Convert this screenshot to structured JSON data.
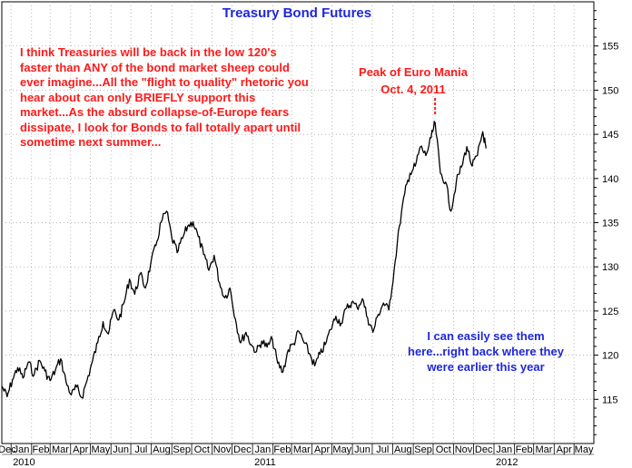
{
  "chart_data": {
    "type": "line",
    "title": "Treasury Bond Futures",
    "ylim": [
      110,
      160
    ],
    "yticks": [
      115,
      120,
      125,
      130,
      135,
      140,
      145,
      150,
      155
    ],
    "grid": "dotted",
    "x_month_labels": [
      "Dec",
      "Jan",
      "Feb",
      "Mar",
      "Apr",
      "May",
      "Jun",
      "Jul",
      "Aug",
      "Sep",
      "Oct",
      "Nov",
      "Dec",
      "Jan",
      "Feb",
      "Mar",
      "Apr",
      "May",
      "Jun",
      "Jul",
      "Aug",
      "Sep",
      "Oct",
      "Nov",
      "Dec",
      "Jan",
      "Feb",
      "Mar",
      "Apr",
      "May"
    ],
    "x_month_dates": [
      "2009-12-01",
      "2010-01-01",
      "2010-02-01",
      "2010-03-01",
      "2010-04-01",
      "2010-05-01",
      "2010-06-01",
      "2010-07-01",
      "2010-08-01",
      "2010-09-01",
      "2010-10-01",
      "2010-11-01",
      "2010-12-01",
      "2011-01-01",
      "2011-02-01",
      "2011-03-01",
      "2011-04-01",
      "2011-05-01",
      "2011-06-01",
      "2011-07-01",
      "2011-08-01",
      "2011-09-01",
      "2011-10-01",
      "2011-11-01",
      "2011-12-01",
      "2012-01-01",
      "2012-02-01",
      "2012-03-01",
      "2012-04-01",
      "2012-05-01"
    ],
    "year_labels": [
      {
        "label": "2010",
        "date": "2010-01-01"
      },
      {
        "label": "2011",
        "date": "2011-01-01"
      },
      {
        "label": "2012",
        "date": "2012-01-01"
      }
    ],
    "xlim": [
      "2009-12-18",
      "2012-05-31"
    ],
    "series": [
      {
        "color": "#000000",
        "points": [
          [
            "2009-12-18",
            116.5
          ],
          [
            "2009-12-26",
            115.3
          ],
          [
            "2010-01-03",
            117.2
          ],
          [
            "2010-01-11",
            118.6
          ],
          [
            "2010-01-19",
            117.4
          ],
          [
            "2010-01-27",
            119.2
          ],
          [
            "2010-02-05",
            117.8
          ],
          [
            "2010-02-13",
            119.4
          ],
          [
            "2010-02-21",
            118.2
          ],
          [
            "2010-03-01",
            117.1
          ],
          [
            "2010-03-09",
            118.3
          ],
          [
            "2010-03-17",
            119.6
          ],
          [
            "2010-03-25",
            117.0
          ],
          [
            "2010-04-02",
            115.5
          ],
          [
            "2010-04-10",
            116.4
          ],
          [
            "2010-04-18",
            115.2
          ],
          [
            "2010-04-26",
            117.2
          ],
          [
            "2010-05-04",
            119.3
          ],
          [
            "2010-05-12",
            121.4
          ],
          [
            "2010-05-20",
            123.8
          ],
          [
            "2010-05-28",
            122.4
          ],
          [
            "2010-06-05",
            125.1
          ],
          [
            "2010-06-13",
            124.0
          ],
          [
            "2010-06-21",
            126.0
          ],
          [
            "2010-06-29",
            128.6
          ],
          [
            "2010-07-07",
            126.9
          ],
          [
            "2010-07-15",
            129.2
          ],
          [
            "2010-07-23",
            127.6
          ],
          [
            "2010-07-31",
            130.3
          ],
          [
            "2010-08-08",
            132.4
          ],
          [
            "2010-08-16",
            135.1
          ],
          [
            "2010-08-24",
            136.3
          ],
          [
            "2010-09-01",
            133.3
          ],
          [
            "2010-09-09",
            131.6
          ],
          [
            "2010-09-17",
            133.2
          ],
          [
            "2010-09-25",
            134.6
          ],
          [
            "2010-10-03",
            135.1
          ],
          [
            "2010-10-11",
            133.4
          ],
          [
            "2010-10-19",
            131.4
          ],
          [
            "2010-10-27",
            129.6
          ],
          [
            "2010-11-04",
            131.3
          ],
          [
            "2010-11-12",
            128.2
          ],
          [
            "2010-11-20",
            126.5
          ],
          [
            "2010-11-28",
            127.6
          ],
          [
            "2010-12-06",
            124.1
          ],
          [
            "2010-12-14",
            121.4
          ],
          [
            "2010-12-22",
            122.6
          ],
          [
            "2010-12-30",
            121.2
          ],
          [
            "2011-01-07",
            120.4
          ],
          [
            "2011-01-15",
            121.6
          ],
          [
            "2011-01-23",
            120.9
          ],
          [
            "2011-01-31",
            121.8
          ],
          [
            "2011-02-08",
            119.1
          ],
          [
            "2011-02-16",
            118.1
          ],
          [
            "2011-02-24",
            120.6
          ],
          [
            "2011-03-04",
            121.3
          ],
          [
            "2011-03-12",
            122.7
          ],
          [
            "2011-03-20",
            121.4
          ],
          [
            "2011-03-28",
            120.2
          ],
          [
            "2011-04-05",
            118.8
          ],
          [
            "2011-04-13",
            120.1
          ],
          [
            "2011-04-21",
            121.2
          ],
          [
            "2011-04-29",
            122.9
          ],
          [
            "2011-05-07",
            124.4
          ],
          [
            "2011-05-15",
            123.6
          ],
          [
            "2011-05-23",
            125.3
          ],
          [
            "2011-05-31",
            126.0
          ],
          [
            "2011-06-08",
            125.4
          ],
          [
            "2011-06-16",
            126.4
          ],
          [
            "2011-06-24",
            124.2
          ],
          [
            "2011-07-02",
            122.6
          ],
          [
            "2011-07-10",
            124.6
          ],
          [
            "2011-07-18",
            125.9
          ],
          [
            "2011-07-26",
            125.1
          ],
          [
            "2011-08-03",
            129.6
          ],
          [
            "2011-08-11",
            134.6
          ],
          [
            "2011-08-19",
            138.3
          ],
          [
            "2011-08-27",
            140.6
          ],
          [
            "2011-09-04",
            141.4
          ],
          [
            "2011-09-12",
            143.6
          ],
          [
            "2011-09-20",
            142.6
          ],
          [
            "2011-09-28",
            144.6
          ],
          [
            "2011-10-04",
            146.3
          ],
          [
            "2011-10-12",
            140.6
          ],
          [
            "2011-10-20",
            139.6
          ],
          [
            "2011-10-28",
            136.3
          ],
          [
            "2011-11-05",
            139.6
          ],
          [
            "2011-11-13",
            141.3
          ],
          [
            "2011-11-21",
            143.6
          ],
          [
            "2011-11-29",
            141.4
          ],
          [
            "2011-12-07",
            142.6
          ],
          [
            "2011-12-15",
            145.3
          ],
          [
            "2011-12-20",
            143.4
          ]
        ]
      }
    ],
    "annotations": {
      "red_note": "I think Treasuries will be back in the low 120's faster than ANY of the bond market sheep could ever imagine...All the \"flight to quality\" rhetoric you hear about can only BRIEFLY support this market...As the absurd collapse-of-Europe fears dissipate, I look for Bonds to fall totally apart until sometime next summer...",
      "peak_line1": "Peak of Euro Mania",
      "peak_line2": "Oct. 4, 2011",
      "peak_date": "2011-10-04",
      "blue_note": "I can easily see them here...right back where they were earlier this year"
    }
  }
}
